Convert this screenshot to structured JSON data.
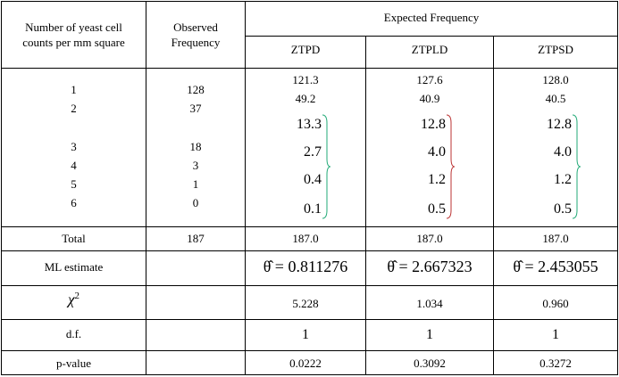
{
  "header": {
    "col1": [
      "Number of yeast cell",
      "counts per mm square"
    ],
    "col2": [
      "Observed",
      "Frequency"
    ],
    "expected": "Expected Frequency",
    "models": [
      "ZTPD",
      "ZTPLD",
      "ZTPSD"
    ]
  },
  "counts": [
    "1",
    "2",
    "3",
    "4",
    "5",
    "6"
  ],
  "observed": [
    "128",
    "37",
    "18",
    "3",
    "1",
    "0"
  ],
  "expected": [
    {
      "top": [
        "121.3",
        "49.2"
      ],
      "grouped": [
        "13.3",
        "2.7",
        "0.4",
        "0.1"
      ]
    },
    {
      "top": [
        "127.6",
        "40.9"
      ],
      "grouped": [
        "12.8",
        "4.0",
        "1.2",
        "0.5"
      ]
    },
    {
      "top": [
        "128.0",
        "40.5"
      ],
      "grouped": [
        "12.8",
        "4.0",
        "1.2",
        "0.5"
      ]
    }
  ],
  "summary": {
    "total_label": "Total",
    "total_observed": "187",
    "totals": [
      "187.0",
      "187.0",
      "187.0"
    ],
    "ml_label": "ML estimate",
    "ml": [
      "θ̂ = 0.811276",
      "θ̂ = 2.667323",
      "θ̂ = 2.453055"
    ],
    "chi_label": "χ",
    "chi_sup": "2",
    "chi": [
      "5.228",
      "1.034",
      "0.960"
    ],
    "df_label": "d.f.",
    "df": [
      "1",
      "1",
      "1"
    ],
    "p_label": "p-value",
    "p": [
      "0.0222",
      "0.3092",
      "0.3272"
    ]
  }
}
